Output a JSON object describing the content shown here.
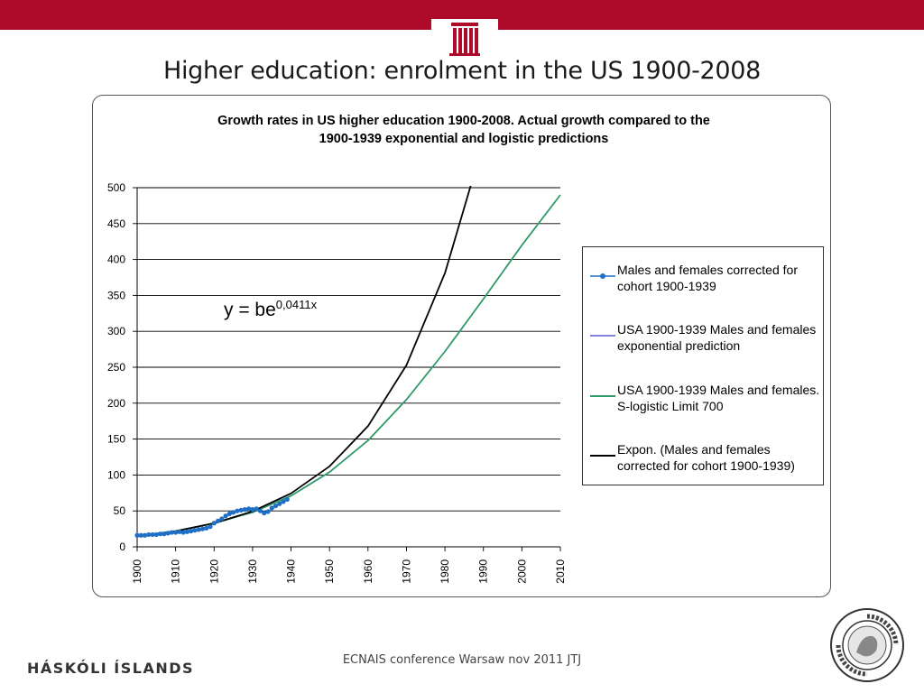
{
  "slide": {
    "title": "Higher education: enrolment in the US 1900-2008",
    "footer_left": "HÁSKÓLI ÍSLANDS",
    "footer_center": "ECNAIS conference Warsaw nov 2011 JTJ",
    "seal_text": "UNIVERSITATIS ISLANDIAE SIGILLUM",
    "brand_color": "#ae0a2a"
  },
  "equation": {
    "base": "y = be",
    "exponent": "0,0411x"
  },
  "chart_data": {
    "type": "line",
    "title_line1": "Growth rates in US higher education 1900-2008. Actual growth compared to the",
    "title_line2": "1900-1939 exponential and logistic predictions",
    "xlabel": "",
    "ylabel": "",
    "xlim": [
      1900,
      2010
    ],
    "ylim": [
      0,
      500
    ],
    "x_ticks": [
      1900,
      1910,
      1920,
      1930,
      1940,
      1950,
      1960,
      1970,
      1980,
      1990,
      2000,
      2010
    ],
    "y_ticks": [
      0,
      50,
      100,
      150,
      200,
      250,
      300,
      350,
      400,
      450,
      500
    ],
    "grid": "horizontal",
    "legend_position": "right",
    "series": [
      {
        "name": "Males and females corrected for cohort 1900-1939",
        "color": "#1f6fc5",
        "marker": "circle",
        "x": [
          1900,
          1901,
          1902,
          1903,
          1904,
          1905,
          1906,
          1907,
          1908,
          1909,
          1910,
          1911,
          1912,
          1913,
          1914,
          1915,
          1916,
          1917,
          1918,
          1919,
          1920,
          1921,
          1922,
          1923,
          1924,
          1925,
          1926,
          1927,
          1928,
          1929,
          1930,
          1931,
          1932,
          1933,
          1934,
          1935,
          1936,
          1937,
          1938,
          1939
        ],
        "y": [
          16,
          16,
          16,
          17,
          17,
          17,
          18,
          18,
          19,
          20,
          20,
          21,
          20,
          21,
          22,
          23,
          24,
          25,
          26,
          28,
          33,
          36,
          39,
          43,
          46,
          48,
          50,
          51,
          52,
          53,
          52,
          53,
          50,
          47,
          49,
          54,
          57,
          60,
          63,
          66
        ]
      },
      {
        "name": "USA 1900-1939 Males and females exponential prediction",
        "color": "#5a5ad6",
        "x": [
          1900,
          1910,
          1920,
          1930,
          1940,
          1950,
          1960,
          1970,
          1980,
          1987
        ],
        "y": [
          14.5,
          21.8,
          32.8,
          49.4,
          74.4,
          112,
          168,
          253,
          381,
          508
        ]
      },
      {
        "name": "USA 1900-1939 Males and females. S-logistic Limit 700",
        "color": "#2e9a68",
        "x": [
          1900,
          1910,
          1920,
          1930,
          1940,
          1950,
          1960,
          1970,
          1980,
          1990,
          2000,
          2010
        ],
        "y": [
          15,
          22,
          33,
          48,
          71,
          104,
          148,
          205,
          272,
          345,
          420,
          490
        ]
      },
      {
        "name": "Expon. (Males and females corrected for cohort 1900-1939)",
        "color": "#000000",
        "x": [
          1900,
          1910,
          1920,
          1930,
          1940,
          1950,
          1960,
          1970,
          1980,
          1987
        ],
        "y": [
          14.5,
          21.8,
          32.8,
          49.4,
          74.4,
          112,
          168,
          253,
          381,
          508
        ]
      }
    ]
  }
}
